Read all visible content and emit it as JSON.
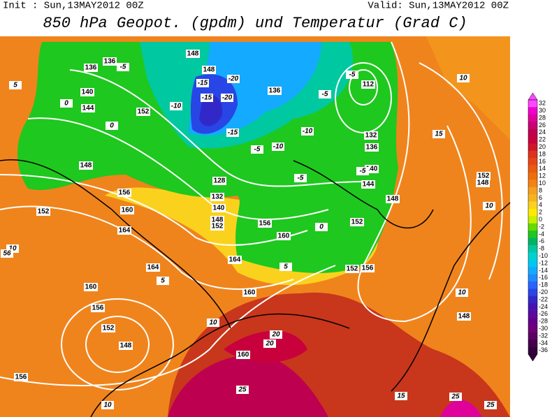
{
  "header": {
    "init": "Init : Sun,13MAY2012 00Z",
    "valid": "Valid: Sun,13MAY2012 00Z",
    "title": "850 hPa Geopot. (gpdm) und Temperatur (Grad C)"
  },
  "colorbar": {
    "labels": [
      32,
      30,
      28,
      26,
      24,
      22,
      20,
      18,
      16,
      14,
      12,
      10,
      8,
      6,
      4,
      2,
      0,
      -2,
      -4,
      -6,
      -8,
      -10,
      -12,
      -14,
      -16,
      -18,
      -20,
      -22,
      -24,
      -26,
      -28,
      -30,
      -32,
      -34,
      -36
    ],
    "colors": [
      "#ff46ff",
      "#f000d0",
      "#e0009a",
      "#c80078",
      "#be0050",
      "#c8003c",
      "#d2142a",
      "#dc321e",
      "#e64614",
      "#eb5a0f",
      "#f06e0a",
      "#f58214",
      "#f5a01e",
      "#f5b41e",
      "#fad21e",
      "#ffeb00",
      "#c8f000",
      "#64dc00",
      "#1ec81e",
      "#00b464",
      "#00c8a0",
      "#00d2d2",
      "#00c8f0",
      "#14aaff",
      "#1e8cff",
      "#2864ff",
      "#2846e6",
      "#3228c8",
      "#4614b4",
      "#5a0aa0",
      "#64008c",
      "#6e0078",
      "#5a0064",
      "#46004b",
      "#32003c"
    ]
  },
  "geopotential_labels": [
    "136",
    "136",
    "140",
    "144",
    "152",
    "148",
    "156",
    "152",
    "160",
    "164",
    "164",
    "160",
    "156",
    "152",
    "148",
    "156",
    "160",
    "160",
    "164",
    "160",
    "156",
    "152",
    "148",
    "144",
    "140",
    "136",
    "132",
    "112",
    "136",
    "148",
    "148",
    "128",
    "132",
    "140",
    "148",
    "152",
    "152",
    "156",
    "152",
    "148",
    "148"
  ],
  "temperature_labels": [
    "5",
    "0",
    "0",
    "-5",
    "-10",
    "-15",
    "-20",
    "-15",
    "-20",
    "-15",
    "-10",
    "-5",
    "-5",
    "-5",
    "-10",
    "-5",
    "-5",
    "0",
    "5",
    "5",
    "10",
    "10",
    "20",
    "20",
    "25",
    "15",
    "10",
    "10",
    "15",
    "10",
    "10",
    "25",
    "25",
    "56"
  ]
}
